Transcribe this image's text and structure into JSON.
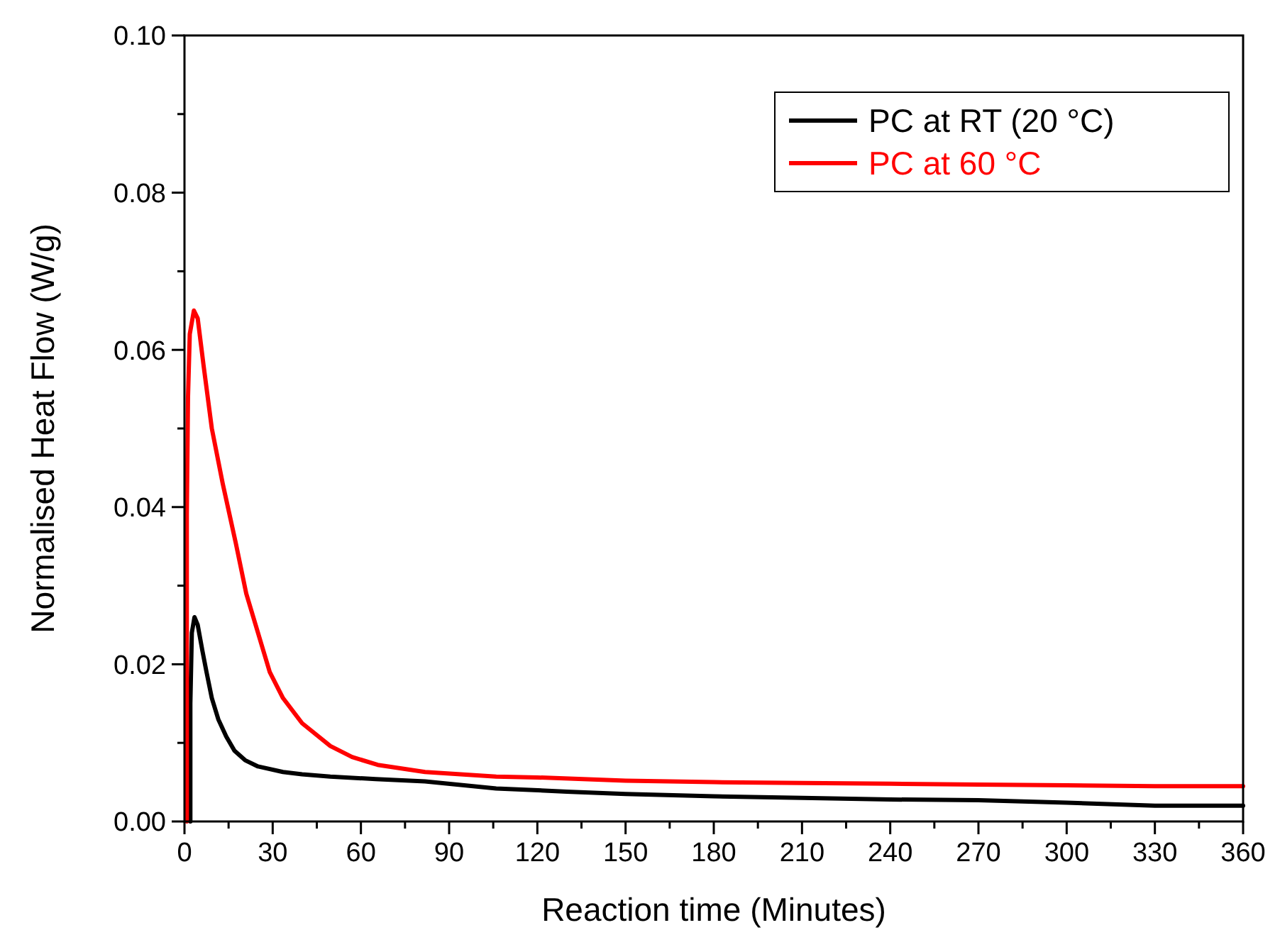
{
  "chart_data": {
    "type": "line",
    "xlabel": "Reaction time (Minutes)",
    "ylabel": "Normalised Heat Flow (W/g)",
    "xlim": [
      0,
      360
    ],
    "ylim": [
      0,
      0.1
    ],
    "xticks": [
      0,
      {
        "value": 15,
        "label": null
      },
      30,
      {
        "value": 45,
        "label": null
      },
      60,
      {
        "value": 75,
        "label": null
      },
      90,
      {
        "value": 105,
        "label": null
      },
      120,
      {
        "value": 135,
        "label": null
      },
      150,
      {
        "value": 165,
        "label": null
      },
      180,
      {
        "value": 195,
        "label": null
      },
      210,
      {
        "value": 225,
        "label": null
      },
      240,
      {
        "value": 255,
        "label": null
      },
      270,
      {
        "value": 285,
        "label": null
      },
      300,
      {
        "value": 315,
        "label": null
      },
      330,
      {
        "value": 345,
        "label": null
      },
      360
    ],
    "yticks": [
      {
        "value": 0,
        "label": "0.00"
      },
      {
        "value": 0.01,
        "label": null
      },
      0.02,
      {
        "value": 0.03,
        "label": null
      },
      0.04,
      {
        "value": 0.05,
        "label": null
      },
      0.06,
      {
        "value": 0.07,
        "label": null
      },
      0.08,
      {
        "value": 0.09,
        "label": null
      },
      {
        "value": 0.1,
        "label": "0.10"
      }
    ],
    "grid": false,
    "legend": "top right",
    "marker": "none",
    "line_style": "solid",
    "series": [
      {
        "name": "PC at RT (20 °C)",
        "color": "#000000",
        "x": [
          2,
          2,
          2.5,
          3.4,
          4.5,
          6.1,
          7.5,
          9.3,
          11.5,
          14.2,
          17,
          20.6,
          25,
          33.5,
          40,
          49.6,
          65,
          81.8,
          106,
          130,
          150,
          180,
          210,
          240,
          270,
          300,
          330,
          360
        ],
        "values": [
          0,
          0.015,
          0.024,
          0.026,
          0.025,
          0.0217,
          0.019,
          0.0157,
          0.013,
          0.0108,
          0.009,
          0.0078,
          0.007,
          0.0063,
          0.006,
          0.0057,
          0.0054,
          0.0051,
          0.0042,
          0.0038,
          0.0035,
          0.0032,
          0.003,
          0.0028,
          0.0027,
          0.0024,
          0.002,
          0.002
        ]
      },
      {
        "name": "PC at 60 °C",
        "color": "#ff0000",
        "x": [
          0.8,
          0.8,
          1.2,
          1.8,
          3.2,
          4.5,
          6.5,
          9.3,
          13,
          17.4,
          21,
          25.4,
          29,
          33.5,
          40,
          49.6,
          57,
          65.7,
          81.8,
          106,
          120,
          150,
          180,
          210,
          240,
          270,
          300,
          330,
          360
        ],
        "values": [
          0,
          0.039,
          0.054,
          0.062,
          0.065,
          0.064,
          0.058,
          0.05,
          0.043,
          0.0355,
          0.029,
          0.0235,
          0.019,
          0.0157,
          0.0125,
          0.0096,
          0.0082,
          0.0072,
          0.0063,
          0.0057,
          0.0056,
          0.0052,
          0.005,
          0.0049,
          0.0048,
          0.0047,
          0.0046,
          0.0045,
          0.0045
        ]
      }
    ]
  }
}
